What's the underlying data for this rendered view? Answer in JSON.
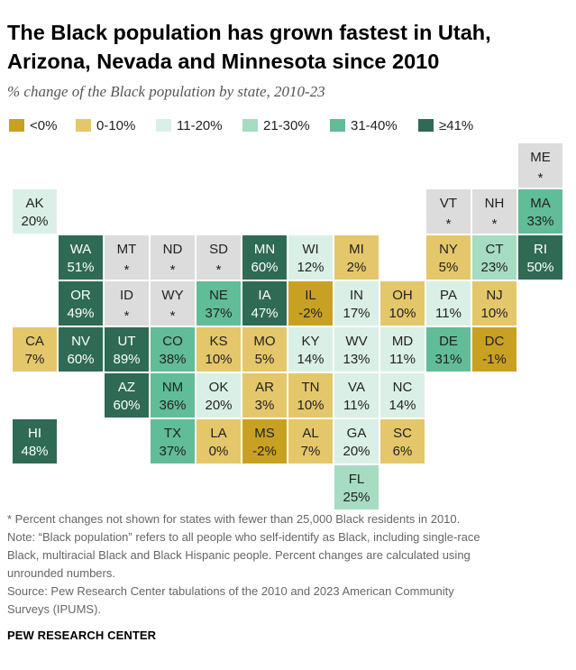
{
  "title": "The Black population has grown fastest in Utah, Arizona, Nevada and Minnesota since 2010",
  "subtitle": "% change of the Black population by state, 2010-23",
  "legend": [
    {
      "label": "<0%",
      "color": "#c9a122"
    },
    {
      "label": "0-10%",
      "color": "#e4c76b"
    },
    {
      "label": "11-20%",
      "color": "#daf0e6"
    },
    {
      "label": "21-30%",
      "color": "#a6dcc1"
    },
    {
      "label": "31-40%",
      "color": "#61bc98"
    },
    {
      "label": "≥41%",
      "color": "#2f6a55"
    }
  ],
  "chart_data": {
    "type": "table",
    "title": "The Black population has grown fastest in Utah, Arizona, Nevada and Minnesota since 2010",
    "subtitle": "% change of the Black population by state, 2010-23",
    "no_data_color": "#dcdcdc",
    "states": [
      {
        "abbr": "ME",
        "value": "*",
        "col": 11,
        "row": 0
      },
      {
        "abbr": "AK",
        "value": "20%",
        "col": 0,
        "row": 1
      },
      {
        "abbr": "VT",
        "value": "*",
        "col": 9,
        "row": 1
      },
      {
        "abbr": "NH",
        "value": "*",
        "col": 10,
        "row": 1
      },
      {
        "abbr": "MA",
        "value": "33%",
        "col": 11,
        "row": 1
      },
      {
        "abbr": "WA",
        "value": "51%",
        "col": 1,
        "row": 2
      },
      {
        "abbr": "MT",
        "value": "*",
        "col": 2,
        "row": 2
      },
      {
        "abbr": "ND",
        "value": "*",
        "col": 3,
        "row": 2
      },
      {
        "abbr": "SD",
        "value": "*",
        "col": 4,
        "row": 2
      },
      {
        "abbr": "MN",
        "value": "60%",
        "col": 5,
        "row": 2
      },
      {
        "abbr": "WI",
        "value": "12%",
        "col": 6,
        "row": 2
      },
      {
        "abbr": "MI",
        "value": "2%",
        "col": 7,
        "row": 2
      },
      {
        "abbr": "NY",
        "value": "5%",
        "col": 9,
        "row": 2
      },
      {
        "abbr": "CT",
        "value": "23%",
        "col": 10,
        "row": 2
      },
      {
        "abbr": "RI",
        "value": "50%",
        "col": 11,
        "row": 2
      },
      {
        "abbr": "OR",
        "value": "49%",
        "col": 1,
        "row": 3
      },
      {
        "abbr": "ID",
        "value": "*",
        "col": 2,
        "row": 3
      },
      {
        "abbr": "WY",
        "value": "*",
        "col": 3,
        "row": 3
      },
      {
        "abbr": "NE",
        "value": "37%",
        "col": 4,
        "row": 3
      },
      {
        "abbr": "IA",
        "value": "47%",
        "col": 5,
        "row": 3
      },
      {
        "abbr": "IL",
        "value": "-2%",
        "col": 6,
        "row": 3
      },
      {
        "abbr": "IN",
        "value": "17%",
        "col": 7,
        "row": 3
      },
      {
        "abbr": "OH",
        "value": "10%",
        "col": 8,
        "row": 3
      },
      {
        "abbr": "PA",
        "value": "11%",
        "col": 9,
        "row": 3
      },
      {
        "abbr": "NJ",
        "value": "10%",
        "col": 10,
        "row": 3
      },
      {
        "abbr": "CA",
        "value": "7%",
        "col": 0,
        "row": 4
      },
      {
        "abbr": "NV",
        "value": "60%",
        "col": 1,
        "row": 4
      },
      {
        "abbr": "UT",
        "value": "89%",
        "col": 2,
        "row": 4
      },
      {
        "abbr": "CO",
        "value": "38%",
        "col": 3,
        "row": 4
      },
      {
        "abbr": "KS",
        "value": "10%",
        "col": 4,
        "row": 4
      },
      {
        "abbr": "MO",
        "value": "5%",
        "col": 5,
        "row": 4
      },
      {
        "abbr": "KY",
        "value": "14%",
        "col": 6,
        "row": 4
      },
      {
        "abbr": "WV",
        "value": "13%",
        "col": 7,
        "row": 4
      },
      {
        "abbr": "MD",
        "value": "11%",
        "col": 8,
        "row": 4
      },
      {
        "abbr": "DE",
        "value": "31%",
        "col": 9,
        "row": 4
      },
      {
        "abbr": "DC",
        "value": "-1%",
        "col": 10,
        "row": 4
      },
      {
        "abbr": "AZ",
        "value": "60%",
        "col": 2,
        "row": 5
      },
      {
        "abbr": "NM",
        "value": "36%",
        "col": 3,
        "row": 5
      },
      {
        "abbr": "OK",
        "value": "20%",
        "col": 4,
        "row": 5
      },
      {
        "abbr": "AR",
        "value": "3%",
        "col": 5,
        "row": 5
      },
      {
        "abbr": "TN",
        "value": "10%",
        "col": 6,
        "row": 5
      },
      {
        "abbr": "VA",
        "value": "11%",
        "col": 7,
        "row": 5
      },
      {
        "abbr": "NC",
        "value": "14%",
        "col": 8,
        "row": 5
      },
      {
        "abbr": "HI",
        "value": "48%",
        "col": 0,
        "row": 6
      },
      {
        "abbr": "TX",
        "value": "37%",
        "col": 3,
        "row": 6
      },
      {
        "abbr": "LA",
        "value": "0%",
        "col": 4,
        "row": 6
      },
      {
        "abbr": "MS",
        "value": "-2%",
        "col": 5,
        "row": 6
      },
      {
        "abbr": "AL",
        "value": "7%",
        "col": 6,
        "row": 6
      },
      {
        "abbr": "GA",
        "value": "20%",
        "col": 7,
        "row": 6
      },
      {
        "abbr": "SC",
        "value": "6%",
        "col": 8,
        "row": 6
      },
      {
        "abbr": "FL",
        "value": "25%",
        "col": 7,
        "row": 7
      }
    ]
  },
  "notes": [
    "* Percent changes not shown for states with fewer than 25,000 Black residents in 2010.",
    "Note: “Black population” refers to all people who self-identify as Black, including single-race",
    "Black, multiracial Black and Black Hispanic people. Percent changes are calculated using",
    "unrounded numbers.",
    "Source: Pew Research Center tabulations of the 2010 and 2023 American Community",
    "Surveys (IPUMS)."
  ],
  "brand": "PEW RESEARCH CENTER"
}
